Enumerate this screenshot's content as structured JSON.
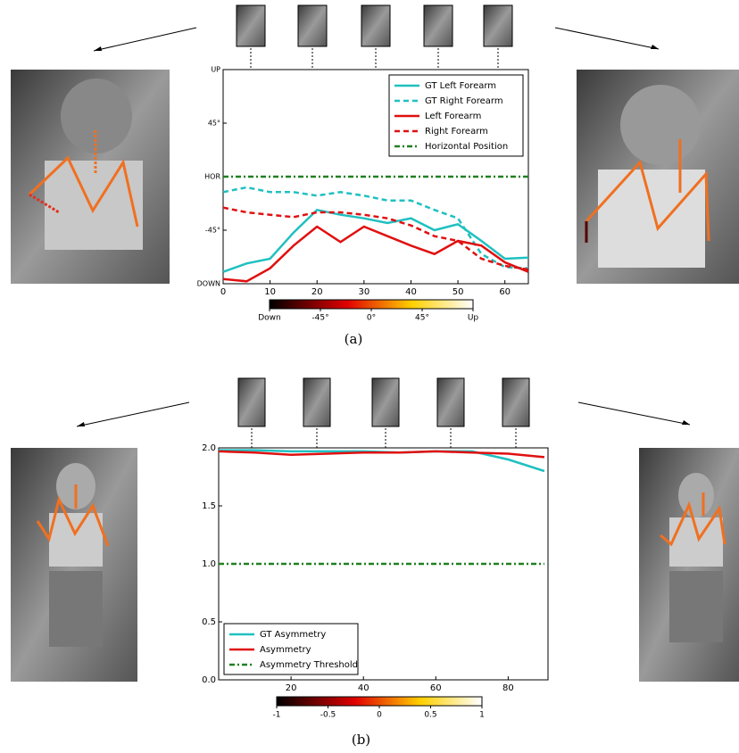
{
  "chart_data": [
    {
      "type": "line",
      "caption": "(a)",
      "x": [
        0,
        5,
        10,
        15,
        20,
        25,
        30,
        35,
        40,
        45,
        50,
        55,
        60,
        65
      ],
      "xlim": [
        0,
        65
      ],
      "xticks": [
        0,
        10,
        20,
        30,
        40,
        50,
        60
      ],
      "ylim": [
        -90,
        90
      ],
      "yticks": [
        {
          "value": -90,
          "label": "DOWN"
        },
        {
          "value": -45,
          "label": "-45°"
        },
        {
          "value": 0,
          "label": "HOR"
        },
        {
          "value": 45,
          "label": "45°"
        },
        {
          "value": 90,
          "label": "UP"
        }
      ],
      "legend": "upper right",
      "series": [
        {
          "name": "GT Left Forearm",
          "color": "#20c0c0",
          "style": "solid",
          "values": [
            -80,
            -73,
            -69,
            -47,
            -28,
            -32,
            -35,
            -39,
            -35,
            -45,
            -40,
            -54,
            -69,
            -68
          ]
        },
        {
          "name": "GT Right Forearm",
          "color": "#20c0c0",
          "style": "dashed",
          "values": [
            -13,
            -9,
            -13,
            -13,
            -16,
            -13,
            -16,
            -20,
            -20,
            -28,
            -35,
            -65,
            -76,
            -77
          ]
        },
        {
          "name": "Left Forearm",
          "color": "#e01010",
          "style": "solid",
          "values": [
            -86,
            -88,
            -77,
            -58,
            -42,
            -55,
            -42,
            -50,
            -58,
            -65,
            -54,
            -58,
            -72,
            -80
          ]
        },
        {
          "name": "Right Forearm",
          "color": "#e01010",
          "style": "dashed",
          "values": [
            -26,
            -30,
            -32,
            -34,
            -30,
            -30,
            -32,
            -35,
            -41,
            -50,
            -54,
            -69,
            -75,
            -78
          ]
        },
        {
          "name": "Horizontal Position",
          "color": "#208020",
          "style": "dashdot",
          "values": [
            0,
            0,
            0,
            0,
            0,
            0,
            0,
            0,
            0,
            0,
            0,
            0,
            0,
            0
          ]
        }
      ],
      "colorbar": {
        "lim": [
          -90,
          90
        ],
        "ticks": [
          {
            "value": -90,
            "label": "Down"
          },
          {
            "value": -45,
            "label": "-45°"
          },
          {
            "value": 0,
            "label": "0°"
          },
          {
            "value": 45,
            "label": "45°"
          },
          {
            "value": 90,
            "label": "Up"
          }
        ]
      }
    },
    {
      "type": "line",
      "caption": "(b)",
      "x": [
        0,
        10,
        20,
        30,
        40,
        50,
        60,
        70,
        80,
        90
      ],
      "xlim": [
        0,
        91
      ],
      "xticks": [
        20,
        40,
        60,
        80
      ],
      "ylim": [
        0,
        2
      ],
      "yticks": [
        {
          "value": 0,
          "label": "0.0"
        },
        {
          "value": 0.5,
          "label": "0.5"
        },
        {
          "value": 1,
          "label": "1.0"
        },
        {
          "value": 1.5,
          "label": "1.5"
        },
        {
          "value": 2,
          "label": "2.0"
        }
      ],
      "legend": "lower left",
      "series": [
        {
          "name": "GT Asymmetry",
          "color": "#20c0c0",
          "style": "solid",
          "values": [
            1.98,
            1.98,
            1.97,
            1.97,
            1.97,
            1.96,
            1.97,
            1.97,
            1.9,
            1.8
          ]
        },
        {
          "name": "Asymmetry",
          "color": "#e01010",
          "style": "solid",
          "values": [
            1.97,
            1.96,
            1.94,
            1.95,
            1.96,
            1.96,
            1.97,
            1.96,
            1.95,
            1.92
          ]
        },
        {
          "name": "Asymmetry Threshold",
          "color": "#208020",
          "style": "dashdot",
          "values": [
            1,
            1,
            1,
            1,
            1,
            1,
            1,
            1,
            1,
            1
          ]
        }
      ],
      "colorbar": {
        "lim": [
          -1,
          1
        ],
        "ticks": [
          {
            "value": -1,
            "label": "-1"
          },
          {
            "value": -0.5,
            "label": "-0.5"
          },
          {
            "value": 0,
            "label": "0"
          },
          {
            "value": 0.5,
            "label": "0.5"
          },
          {
            "value": 1,
            "label": "1"
          }
        ]
      }
    }
  ]
}
